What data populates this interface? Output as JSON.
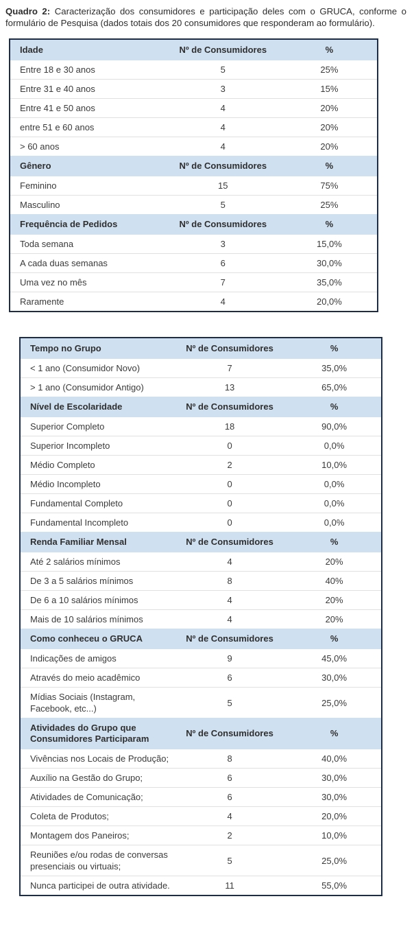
{
  "caption": {
    "label": "Quadro 2:",
    "text": " Caracterização dos consumidores e participação deles com o GRUCA, conforme o formulário de Pesquisa (dados totais dos 20 consumidores que responderam ao formulário)."
  },
  "columns": {
    "count_header": "Nº de Consumidores",
    "percent_header": "%"
  },
  "colors": {
    "header_bg": "#cfe0f0",
    "table_border": "#1f2c45",
    "row_separator": "#e0e0e0"
  },
  "tables": [
    {
      "sections": [
        {
          "title": "Idade",
          "rows": [
            [
              "Entre 18 e 30 anos",
              "5",
              "25%"
            ],
            [
              "Entre 31 e 40 anos",
              "3",
              "15%"
            ],
            [
              "Entre 41 e 50 anos",
              "4",
              "20%"
            ],
            [
              "entre 51 e 60 anos",
              "4",
              "20%"
            ],
            [
              "> 60 anos",
              "4",
              "20%"
            ]
          ]
        },
        {
          "title": "Gênero",
          "rows": [
            [
              "Feminino",
              "15",
              "75%"
            ],
            [
              "Masculino",
              "5",
              "25%"
            ]
          ]
        },
        {
          "title": "Frequência de Pedidos",
          "rows": [
            [
              "Toda semana",
              "3",
              "15,0%"
            ],
            [
              "A cada duas semanas",
              "6",
              "30,0%"
            ],
            [
              "Uma vez no mês",
              "7",
              "35,0%"
            ],
            [
              "Raramente",
              "4",
              "20,0%"
            ]
          ]
        }
      ]
    },
    {
      "sections": [
        {
          "title": "Tempo no Grupo",
          "rows": [
            [
              "< 1 ano (Consumidor Novo)",
              "7",
              "35,0%"
            ],
            [
              "> 1 ano (Consumidor Antigo)",
              "13",
              "65,0%"
            ]
          ]
        },
        {
          "title": "Nível de Escolaridade",
          "rows": [
            [
              "Superior Completo",
              "18",
              "90,0%"
            ],
            [
              "Superior Incompleto",
              "0",
              "0,0%"
            ],
            [
              "Médio Completo",
              "2",
              "10,0%"
            ],
            [
              "Médio Incompleto",
              "0",
              "0,0%"
            ],
            [
              "Fundamental Completo",
              "0",
              "0,0%"
            ],
            [
              "Fundamental Incompleto",
              "0",
              "0,0%"
            ]
          ]
        },
        {
          "title": "Renda Familiar Mensal",
          "rows": [
            [
              "Até 2 salários mínimos",
              "4",
              "20%"
            ],
            [
              "De 3 a 5 salários mínimos",
              "8",
              "40%"
            ],
            [
              "De 6 a 10 salários mínimos",
              "4",
              "20%"
            ],
            [
              "Mais de 10 salários mínimos",
              "4",
              "20%"
            ]
          ]
        },
        {
          "title": "Como conheceu o GRUCA",
          "rows": [
            [
              "Indicações de amigos",
              "9",
              "45,0%"
            ],
            [
              "Através do meio acadêmico",
              "6",
              "30,0%"
            ],
            [
              "Mídias Sociais (Instagram, Facebook, etc...)",
              "5",
              "25,0%"
            ]
          ]
        },
        {
          "title": "Atividades do Grupo que Consumidores Participaram",
          "rows": [
            [
              "Vivências nos Locais de Produção;",
              "8",
              "40,0%"
            ],
            [
              "Auxílio na Gestão do Grupo;",
              "6",
              "30,0%"
            ],
            [
              "Atividades de Comunicação;",
              "6",
              "30,0%"
            ],
            [
              "Coleta de Produtos;",
              "4",
              "20,0%"
            ],
            [
              "Montagem dos Paneiros;",
              "2",
              "10,0%"
            ],
            [
              "Reuniões e/ou rodas de conversas presenciais ou virtuais;",
              "5",
              "25,0%"
            ],
            [
              "Nunca participei de outra atividade.",
              "11",
              "55,0%"
            ]
          ]
        }
      ]
    }
  ]
}
